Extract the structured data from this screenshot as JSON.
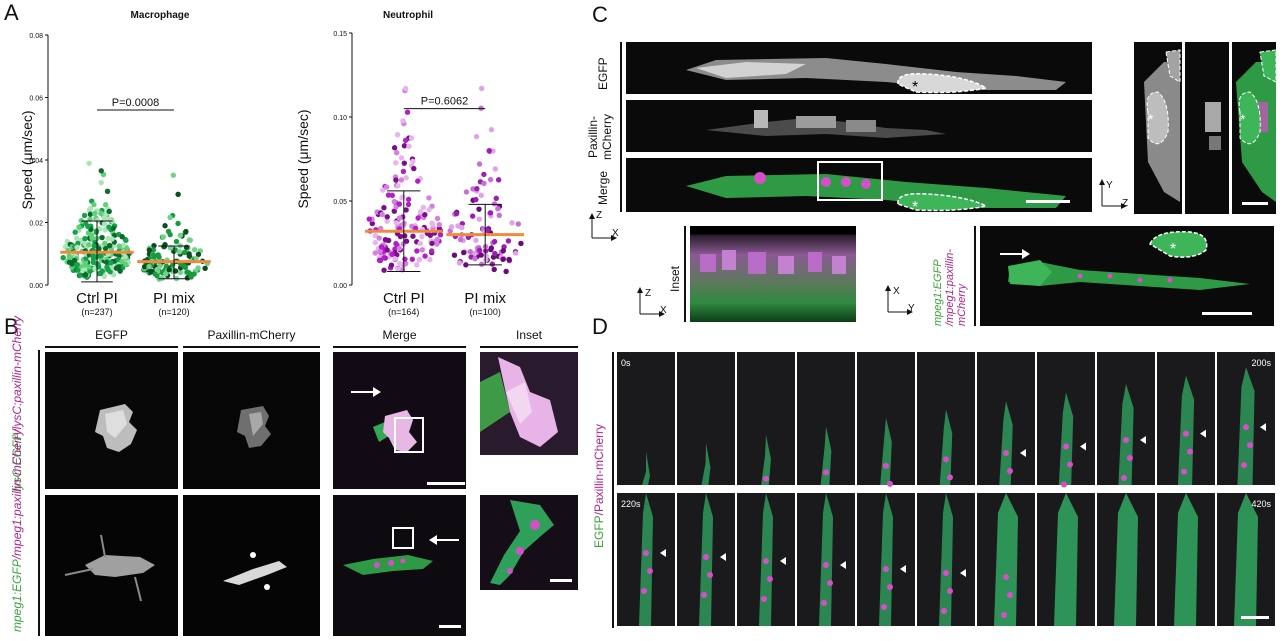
{
  "panel_labels": {
    "a": "A",
    "b": "B",
    "c": "C",
    "d": "D"
  },
  "chart_data": [
    {
      "type": "scatter",
      "title": "Macrophage",
      "ylabel": "Speed (μm/sec)",
      "categories": [
        "Ctrl PI",
        "PI mix"
      ],
      "category_notes": [
        "(n=237)",
        "(n=120)"
      ],
      "y_ticks": [
        "0.00",
        "0.02",
        "0.04",
        "0.06",
        "0.08"
      ],
      "ylim": [
        0,
        0.08
      ],
      "series": [
        {
          "n": 237,
          "median": 0.0105,
          "sd_low": 0.001,
          "sd_high": 0.0205,
          "colors": [
            "#15a34a",
            "#5fd07a",
            "#0b6b2a",
            "#a9e5b6"
          ]
        },
        {
          "n": 120,
          "median": 0.0075,
          "sd_low": 0.002,
          "sd_high": 0.0125,
          "colors": [
            "#0e4d1f",
            "#1a9a40",
            "#6ed48a"
          ]
        }
      ],
      "annotation": "P=0.0008",
      "median_color": "#f08a3c"
    },
    {
      "type": "scatter",
      "title": "Neutrophil",
      "ylabel": "Speed (μm/sec)",
      "categories": [
        "Ctrl PI",
        "PI mix"
      ],
      "category_notes": [
        "(n=164)",
        "(n=100)"
      ],
      "y_ticks": [
        "0.00",
        "0.05",
        "0.10",
        "0.15"
      ],
      "ylim": [
        0,
        0.15
      ],
      "series": [
        {
          "n": 164,
          "median": 0.032,
          "sd_low": 0.008,
          "sd_high": 0.056,
          "colors": [
            "#b21fc4",
            "#7a0f8a",
            "#d77ee3",
            "#e9b3f0"
          ]
        },
        {
          "n": 100,
          "median": 0.03,
          "sd_low": 0.012,
          "sd_high": 0.048,
          "colors": [
            "#c86fd8",
            "#9b1fb0",
            "#e0a3ea",
            "#6a0c78"
          ]
        }
      ],
      "annotation": "P=0.6062",
      "median_color": "#f08a3c"
    }
  ],
  "panel_b": {
    "col_headers": [
      "EGFP",
      "Paxillin-mCherry",
      "Merge",
      "Inset"
    ],
    "row1_label_a": "lysC:EGFP",
    "row1_label_b": "/lysC:paxillin-mCherry",
    "row2_label_a": "mpeg1:EGFP",
    "row2_label_b": "/mpeg1:paxillin-mCherry"
  },
  "panel_c": {
    "row_labels": [
      "EGFP",
      "Paxillin-\nmCherry",
      "Merge"
    ],
    "paxillin_a": "Paxillin-",
    "paxillin_b": "mCherry",
    "inset_label": "Inset",
    "axis_z": "Z",
    "axis_x": "X",
    "axis_y": "Y",
    "side_label_a": "mpeg1:EGFP",
    "side_label_b": "/mpeg1:paxillin-",
    "side_label_c": "mCherry",
    "asterisk": "*"
  },
  "panel_d": {
    "side_label_a": "EGFP",
    "side_label_b": "/Paxillin-mCherry",
    "timestamps": [
      "0s",
      "200s",
      "220s",
      "420s"
    ]
  }
}
